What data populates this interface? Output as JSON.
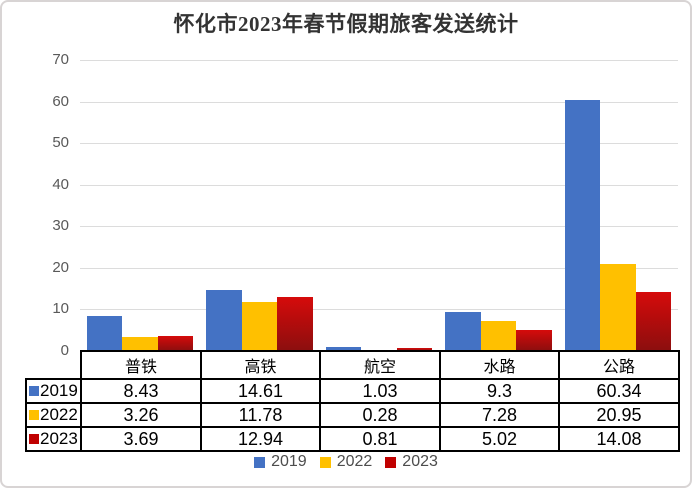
{
  "page": {
    "title": "怀化市2023年春节假期旅客发送统计"
  },
  "chart_data": {
    "type": "bar",
    "title": "怀化市2023年春节假期旅客发送统计",
    "categories": [
      "普铁",
      "高铁",
      "航空",
      "水路",
      "公路"
    ],
    "series": [
      {
        "name": "2019",
        "color": "#4472C4",
        "values": [
          8.43,
          14.61,
          1.03,
          9.3,
          60.34
        ]
      },
      {
        "name": "2022",
        "color": "#FFC000",
        "values": [
          3.26,
          11.78,
          0.28,
          7.28,
          20.95
        ]
      },
      {
        "name": "2023",
        "color": "#C00000",
        "gradient_top": "#D60B0B",
        "gradient_bottom": "#8B0E0E",
        "values": [
          3.69,
          12.94,
          0.81,
          5.02,
          14.08
        ]
      }
    ],
    "xlabel": "",
    "ylabel": "",
    "ylim": [
      0,
      70
    ],
    "yticks": [
      0,
      10,
      20,
      30,
      40,
      50,
      60,
      70
    ],
    "grid": true,
    "grid_color": "#DCDCDC",
    "axis_text_color": "#595959",
    "legend_position": "bottom",
    "legend_text_color": "#4d4d4d",
    "data_table_shown": true,
    "table_border_color": "#000000"
  }
}
